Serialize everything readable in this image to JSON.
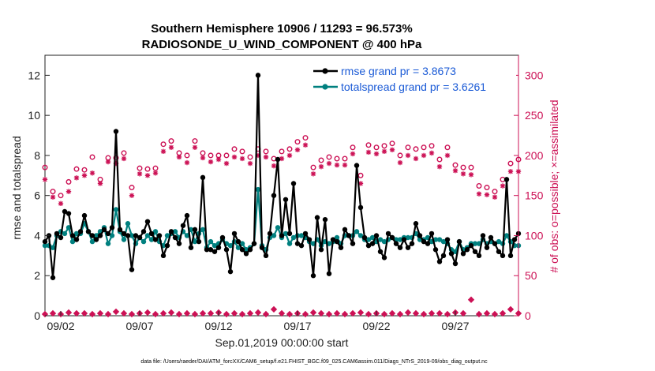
{
  "chart_data": {
    "type": "line",
    "title_line1": "Southern Hemisphere 10906 / 11293 = 96.573%",
    "title_line2": "RADIOSONDE_U_WIND_COMPONENT @ 400 hPa",
    "ylabel_left": "rmse and totalspread",
    "ylabel_right": "# of obs: o=possible; ×=assimilated",
    "xlabel": "Sep.01,2019 00:00:00 start",
    "footer": "data file: /Users/raeder/DAI/ATM_forcXX/CAM6_setup/f.e21.FHIST_BGC.f09_025.CAM6assim.011/Diags_NTrS_2019-09/obs_diag_output.nc",
    "x_ticks": [
      "09/02",
      "09/07",
      "09/12",
      "09/17",
      "09/22",
      "09/27"
    ],
    "x_tick_days": [
      2,
      7,
      12,
      17,
      22,
      27
    ],
    "xlim_days": [
      1.0,
      31.0
    ],
    "ylim_left": [
      0,
      13
    ],
    "ylim_right": [
      0,
      325
    ],
    "y_ticks_left": [
      "0",
      "2",
      "4",
      "6",
      "8",
      "10",
      "12"
    ],
    "y_ticks_right": [
      "0",
      "50",
      "100",
      "150",
      "200",
      "250",
      "300"
    ],
    "grid": false,
    "legend_position": "top-right",
    "colors": {
      "rmse": "#000000",
      "spread": "#00807f",
      "obs": "#cc1155",
      "legend_text": "#1a5ad6",
      "axis": "#222222"
    },
    "series": [
      {
        "name": "rmse grand pr = 3.8673",
        "x": [
          1.0,
          1.25,
          1.5,
          1.75,
          2.0,
          2.25,
          2.5,
          2.75,
          3.0,
          3.25,
          3.5,
          3.75,
          4.0,
          4.25,
          4.5,
          4.75,
          5.0,
          5.25,
          5.5,
          5.75,
          6.0,
          6.25,
          6.5,
          6.75,
          7.0,
          7.25,
          7.5,
          7.75,
          8.0,
          8.25,
          8.5,
          8.75,
          9.0,
          9.25,
          9.5,
          9.75,
          10.0,
          10.25,
          10.5,
          10.75,
          11.0,
          11.25,
          11.5,
          11.75,
          12.0,
          12.25,
          12.5,
          12.75,
          13.0,
          13.25,
          13.5,
          13.75,
          14.0,
          14.25,
          14.5,
          14.75,
          15.0,
          15.25,
          15.5,
          15.75,
          16.0,
          16.25,
          16.5,
          16.75,
          17.0,
          17.25,
          17.5,
          17.75,
          18.0,
          18.25,
          18.5,
          18.75,
          19.0,
          19.25,
          19.5,
          19.75,
          20.0,
          20.25,
          20.5,
          20.75,
          21.0,
          21.25,
          21.5,
          21.75,
          22.0,
          22.25,
          22.5,
          22.75,
          23.0,
          23.25,
          23.5,
          23.75,
          24.0,
          24.25,
          24.5,
          24.75,
          25.0,
          25.25,
          25.5,
          25.75,
          26.0,
          26.25,
          26.5,
          26.75,
          27.0,
          27.25,
          27.5,
          27.75,
          28.0,
          28.25,
          28.5,
          28.75,
          29.0,
          29.25,
          29.5,
          29.75,
          30.0,
          30.25,
          30.5,
          30.75,
          31.0
        ],
        "values": [
          3.7,
          4.0,
          1.9,
          4.1,
          3.9,
          5.2,
          5.1,
          4.0,
          3.8,
          4.2,
          5.0,
          4.2,
          4.0,
          3.8,
          4.0,
          4.3,
          4.1,
          4.4,
          9.2,
          4.3,
          4.1,
          4.0,
          2.3,
          4.0,
          3.9,
          4.2,
          4.7,
          4.1,
          3.8,
          4.0,
          3.0,
          3.5,
          4.2,
          3.9,
          3.6,
          4.5,
          5.0,
          3.4,
          4.3,
          3.7,
          6.9,
          3.3,
          3.3,
          3.2,
          3.4,
          3.9,
          3.3,
          2.2,
          4.1,
          3.7,
          3.3,
          3.1,
          3.3,
          3.6,
          12.0,
          3.4,
          3.0,
          4.1,
          6.0,
          7.8,
          4.0,
          5.8,
          4.1,
          6.6,
          3.6,
          3.5,
          4.1,
          3.8,
          2.0,
          4.9,
          3.3,
          4.8,
          2.1,
          3.8,
          3.7,
          3.4,
          4.3,
          4.0,
          3.6,
          7.5,
          5.4,
          3.9,
          3.5,
          3.6,
          4.0,
          3.2,
          2.9,
          4.1,
          3.9,
          3.6,
          3.4,
          3.8,
          3.4,
          3.6,
          4.6,
          4.0,
          3.7,
          3.6,
          4.1,
          3.3,
          2.7,
          3.0,
          3.8,
          3.1,
          2.6,
          3.7,
          3.1,
          3.3,
          3.5,
          3.2,
          3.0,
          4.0,
          3.4,
          3.9,
          3.6,
          3.2,
          3.0,
          6.8,
          3.0,
          3.8,
          4.1
        ]
      },
      {
        "name": "totalspread grand pr = 3.6261",
        "x": [
          1.0,
          1.25,
          1.5,
          1.75,
          2.0,
          2.25,
          2.5,
          2.75,
          3.0,
          3.25,
          3.5,
          3.75,
          4.0,
          4.25,
          4.5,
          4.75,
          5.0,
          5.25,
          5.5,
          5.75,
          6.0,
          6.25,
          6.5,
          6.75,
          7.0,
          7.25,
          7.5,
          7.75,
          8.0,
          8.25,
          8.5,
          8.75,
          9.0,
          9.25,
          9.5,
          9.75,
          10.0,
          10.25,
          10.5,
          10.75,
          11.0,
          11.25,
          11.5,
          11.75,
          12.0,
          12.25,
          12.5,
          12.75,
          13.0,
          13.25,
          13.5,
          13.75,
          14.0,
          14.25,
          14.5,
          14.75,
          15.0,
          15.25,
          15.5,
          15.75,
          16.0,
          16.25,
          16.5,
          16.75,
          17.0,
          17.25,
          17.5,
          17.75,
          18.0,
          18.25,
          18.5,
          18.75,
          19.0,
          19.25,
          19.5,
          19.75,
          20.0,
          20.25,
          20.5,
          20.75,
          21.0,
          21.25,
          21.5,
          21.75,
          22.0,
          22.25,
          22.5,
          22.75,
          23.0,
          23.25,
          23.5,
          23.75,
          24.0,
          24.25,
          24.5,
          24.75,
          25.0,
          25.25,
          25.5,
          25.75,
          26.0,
          26.25,
          26.5,
          26.75,
          27.0,
          27.25,
          27.5,
          27.75,
          28.0,
          28.25,
          28.5,
          28.75,
          29.0,
          29.25,
          29.5,
          29.75,
          30.0,
          30.25,
          30.5,
          30.75,
          31.0
        ],
        "values": [
          3.5,
          3.5,
          3.4,
          4.0,
          4.2,
          4.1,
          4.4,
          3.7,
          4.1,
          4.1,
          4.6,
          4.2,
          3.7,
          4.0,
          4.2,
          4.4,
          3.6,
          4.0,
          5.3,
          4.2,
          3.8,
          4.6,
          4.0,
          3.6,
          3.9,
          3.7,
          4.0,
          3.8,
          4.2,
          3.7,
          3.5,
          4.0,
          4.1,
          4.2,
          3.9,
          4.2,
          4.0,
          4.3,
          3.7,
          4.1,
          4.3,
          3.4,
          3.7,
          3.5,
          3.6,
          3.8,
          3.6,
          3.5,
          3.7,
          3.4,
          3.6,
          3.3,
          3.4,
          3.6,
          6.3,
          3.5,
          3.3,
          3.9,
          4.0,
          4.4,
          3.9,
          4.1,
          3.6,
          3.9,
          4.0,
          4.0,
          3.9,
          3.7,
          3.6,
          3.8,
          3.5,
          3.7,
          3.6,
          3.7,
          3.9,
          3.6,
          4.0,
          4.0,
          4.0,
          4.2,
          4.0,
          3.8,
          3.8,
          3.9,
          3.7,
          3.8,
          3.7,
          3.8,
          3.9,
          3.8,
          3.8,
          3.9,
          3.9,
          3.9,
          4.1,
          3.8,
          3.8,
          3.9,
          3.7,
          3.8,
          3.8,
          3.7,
          3.6,
          3.3,
          3.2,
          3.7,
          3.3,
          3.4,
          3.6,
          3.6,
          3.6,
          3.8,
          3.6,
          3.7,
          3.6,
          3.7,
          3.6,
          4.0,
          3.7,
          3.5,
          3.5
        ]
      },
      {
        "name": "obs possible",
        "x": [
          1.0,
          1.5,
          2.0,
          2.5,
          3.0,
          3.5,
          4.0,
          4.5,
          5.0,
          5.5,
          6.0,
          6.5,
          7.0,
          7.5,
          8.0,
          8.5,
          9.0,
          9.5,
          10.0,
          10.5,
          11.0,
          11.5,
          12.0,
          12.5,
          13.0,
          13.5,
          14.0,
          14.5,
          15.0,
          15.5,
          16.0,
          16.5,
          17.0,
          17.5,
          18.0,
          18.5,
          19.0,
          19.5,
          20.0,
          20.5,
          21.0,
          21.5,
          22.0,
          22.5,
          23.0,
          23.5,
          24.0,
          24.5,
          25.0,
          25.5,
          26.0,
          26.5,
          27.0,
          27.5,
          28.0,
          28.5,
          29.0,
          29.5,
          30.0,
          30.5,
          31.0
        ],
        "values": [
          185,
          155,
          150,
          167,
          183,
          182,
          198,
          170,
          197,
          197,
          203,
          160,
          184,
          183,
          184,
          214,
          218,
          203,
          200,
          218,
          203,
          200,
          200,
          200,
          208,
          205,
          198,
          208,
          205,
          196,
          205,
          208,
          217,
          222,
          185,
          194,
          198,
          196,
          196,
          210,
          175,
          213,
          210,
          212,
          215,
          200,
          210,
          208,
          210,
          212,
          195,
          210,
          188,
          185,
          185,
          162,
          160,
          155,
          170,
          190,
          195
        ]
      },
      {
        "name": "obs assimilated",
        "x": [
          1.0,
          1.5,
          2.0,
          2.5,
          3.0,
          3.5,
          4.0,
          4.5,
          5.0,
          5.5,
          6.0,
          6.5,
          7.0,
          7.5,
          8.0,
          8.5,
          9.0,
          9.5,
          10.0,
          10.5,
          11.0,
          11.5,
          12.0,
          12.5,
          13.0,
          13.5,
          14.0,
          14.5,
          15.0,
          15.5,
          16.0,
          16.5,
          17.0,
          17.5,
          18.0,
          18.5,
          19.0,
          19.5,
          20.0,
          20.5,
          21.0,
          21.5,
          22.0,
          22.5,
          23.0,
          23.5,
          24.0,
          24.5,
          25.0,
          25.5,
          26.0,
          26.5,
          27.0,
          27.5,
          28.0,
          28.5,
          29.0,
          29.5,
          30.0,
          30.5,
          31.0
        ],
        "values": [
          170,
          148,
          140,
          155,
          172,
          175,
          178,
          165,
          192,
          190,
          196,
          150,
          177,
          175,
          178,
          205,
          210,
          198,
          191,
          210,
          197,
          192,
          195,
          190,
          198,
          196,
          190,
          200,
          198,
          187,
          196,
          200,
          207,
          213,
          177,
          186,
          190,
          188,
          188,
          202,
          165,
          204,
          202,
          205,
          207,
          191,
          200,
          196,
          200,
          203,
          186,
          200,
          181,
          177,
          176,
          152,
          151,
          148,
          162,
          180,
          180
        ]
      }
    ],
    "obs_bottom_row": [
      2,
      3,
      2,
      4,
      3,
      3,
      2,
      3,
      2,
      5,
      3,
      2,
      3,
      4,
      2,
      3,
      4,
      2,
      3,
      2,
      3,
      3,
      4,
      2,
      3,
      2,
      3,
      4,
      2,
      8,
      3,
      2,
      3,
      2,
      4,
      3,
      2,
      3,
      2,
      3,
      4,
      2,
      3,
      2,
      3,
      2,
      4,
      3,
      2,
      3,
      3,
      2,
      4,
      3,
      20,
      2,
      3,
      2,
      3,
      8,
      3
    ]
  }
}
